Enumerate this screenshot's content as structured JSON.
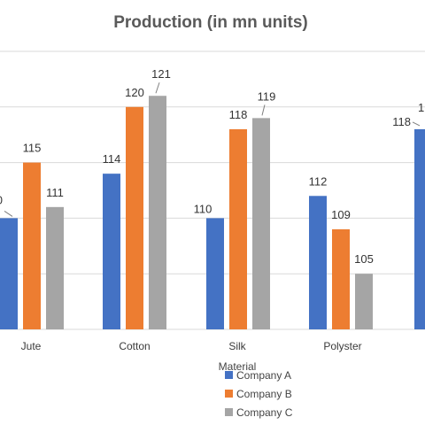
{
  "colors": {
    "company_a": "#4472C4",
    "company_b": "#ED7D31",
    "company_c": "#A5A5A5",
    "grid": "#d9d9d9",
    "leader": "#7f7f7f"
  },
  "chart_data": {
    "type": "bar",
    "title": "Production (in mn units)",
    "xlabel": "Material",
    "ylabel": "",
    "categories": [
      "Jute",
      "Cotton",
      "Silk",
      "Polyster",
      ""
    ],
    "series": [
      {
        "name": "Company A",
        "values": [
          110,
          114,
          110,
          112,
          118
        ]
      },
      {
        "name": "Company B",
        "values": [
          115,
          120,
          118,
          109,
          null
        ]
      },
      {
        "name": "Company C",
        "values": [
          111,
          121,
          119,
          105,
          null
        ]
      }
    ],
    "data_labels": {
      "company_a": [
        "0",
        "114",
        "110",
        "112",
        "118"
      ],
      "company_b": [
        "115",
        "120",
        "118",
        "109"
      ],
      "company_c": [
        "111",
        "121",
        "119",
        "105"
      ],
      "partial_right": "1"
    },
    "ylim": [
      100,
      125
    ],
    "grid": true,
    "legend": "bottom",
    "legend_entries": [
      "Company A",
      "Company B",
      "Company C"
    ]
  }
}
